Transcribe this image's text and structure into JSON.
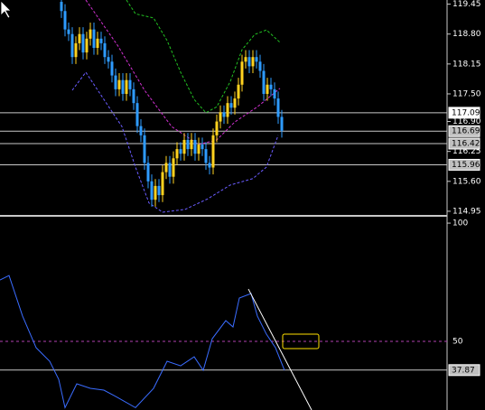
{
  "chart_data": [
    {
      "type": "candlestick",
      "x": [
        0,
        1,
        2,
        3,
        4,
        5,
        6,
        7,
        8,
        9,
        10,
        11,
        12,
        13,
        14,
        15,
        16,
        17,
        18,
        19,
        20,
        21,
        22,
        23,
        24,
        25,
        26,
        27,
        28,
        29,
        30,
        31,
        32,
        33,
        34,
        35,
        36,
        37,
        38,
        39,
        40,
        41,
        42,
        43,
        44,
        45,
        46,
        47,
        48,
        49,
        50,
        51,
        52,
        53,
        54,
        55,
        56,
        57,
        58,
        59,
        60,
        61
      ],
      "open": [
        119.5,
        119.3,
        118.9,
        118.8,
        118.3,
        118.6,
        118.8,
        118.4,
        118.7,
        118.9,
        118.5,
        118.7,
        118.6,
        118.3,
        118.2,
        117.9,
        117.6,
        117.8,
        117.5,
        117.8,
        117.6,
        117.3,
        116.8,
        116.6,
        116.0,
        115.6,
        115.2,
        115.5,
        115.3,
        115.8,
        116.0,
        115.7,
        116.1,
        116.3,
        116.2,
        116.5,
        116.3,
        116.5,
        116.2,
        116.4,
        116.3,
        116.0,
        115.9,
        116.6,
        116.9,
        117.1,
        117.0,
        117.3,
        117.2,
        117.4,
        117.7,
        118.2,
        118.3,
        118.1,
        118.3,
        118.2,
        118.0,
        117.5,
        117.7,
        117.6,
        117.4,
        117.0
      ],
      "high": [
        119.65,
        119.45,
        119.05,
        118.95,
        118.75,
        118.95,
        118.95,
        118.85,
        119.05,
        119.05,
        118.85,
        118.85,
        118.75,
        118.45,
        118.35,
        118.05,
        117.95,
        117.95,
        117.95,
        117.95,
        117.75,
        117.45,
        116.95,
        116.75,
        116.15,
        115.75,
        115.65,
        115.65,
        115.95,
        116.15,
        116.15,
        116.25,
        116.45,
        116.45,
        116.65,
        116.65,
        116.65,
        116.65,
        116.55,
        116.55,
        116.45,
        116.15,
        116.75,
        117.05,
        117.25,
        117.25,
        117.45,
        117.45,
        117.55,
        117.85,
        118.35,
        118.45,
        118.45,
        118.45,
        118.45,
        118.35,
        118.15,
        117.85,
        117.85,
        117.75,
        117.55,
        117.15
      ],
      "low": [
        119.15,
        118.75,
        118.65,
        118.15,
        118.15,
        118.45,
        118.25,
        118.25,
        118.55,
        118.35,
        118.35,
        118.45,
        118.15,
        118.05,
        117.75,
        117.45,
        117.45,
        117.35,
        117.35,
        117.45,
        117.15,
        116.65,
        116.45,
        115.85,
        115.45,
        115.05,
        115.05,
        115.15,
        115.15,
        115.65,
        115.55,
        115.55,
        115.95,
        116.05,
        116.05,
        116.15,
        116.15,
        116.05,
        116.05,
        116.15,
        115.85,
        115.75,
        115.75,
        116.45,
        116.75,
        116.85,
        116.85,
        117.05,
        117.05,
        117.25,
        117.55,
        118.05,
        117.95,
        117.95,
        118.05,
        117.85,
        117.35,
        117.35,
        117.45,
        117.25,
        116.85,
        116.55
      ],
      "close": [
        119.3,
        118.9,
        118.8,
        118.3,
        118.6,
        118.8,
        118.4,
        118.7,
        118.9,
        118.5,
        118.7,
        118.6,
        118.3,
        118.2,
        117.9,
        117.6,
        117.8,
        117.5,
        117.8,
        117.6,
        117.3,
        116.8,
        116.6,
        116.0,
        115.6,
        115.2,
        115.5,
        115.3,
        115.8,
        116.0,
        115.7,
        116.1,
        116.3,
        116.2,
        116.5,
        116.3,
        116.5,
        116.2,
        116.4,
        116.3,
        116.0,
        115.9,
        116.6,
        116.9,
        117.1,
        117.0,
        117.3,
        117.2,
        117.4,
        117.7,
        118.2,
        118.3,
        118.1,
        118.3,
        118.2,
        118.0,
        117.5,
        117.7,
        117.6,
        117.4,
        117.0,
        116.7
      ],
      "up_color": "#ffd21f",
      "down_color": "#2e9bff",
      "series": [
        {
          "color": "#22c022",
          "x": [
            18,
            20.5,
            25.5,
            29.25,
            33,
            36.75,
            40,
            43,
            46.75,
            50,
            53.5,
            56.75,
            60.5
          ],
          "values": [
            119.54,
            119.24,
            119.15,
            118.66,
            117.97,
            117.38,
            117.09,
            117.22,
            117.77,
            118.46,
            118.79,
            118.89,
            118.62
          ]
        },
        {
          "color": "#d030d0",
          "x": [
            6.75,
            15.5,
            23,
            30.5,
            38,
            43,
            48,
            54.25,
            60.5
          ],
          "values": [
            119.54,
            118.56,
            117.58,
            116.79,
            116.4,
            116.5,
            116.89,
            117.22,
            117.62
          ]
        },
        {
          "color": "#6a5cff",
          "x": [
            3,
            6.75,
            11.75,
            16.75,
            20.5,
            24.25,
            28,
            34.25,
            40.5,
            46.75,
            53,
            56.75,
            60
          ],
          "values": [
            117.58,
            117.97,
            117.38,
            116.79,
            115.91,
            115.13,
            114.93,
            114.99,
            115.22,
            115.52,
            115.66,
            115.91,
            116.6
          ]
        }
      ],
      "levels": [
        117.09,
        116.69,
        116.42,
        115.96
      ],
      "xlim": [
        -17,
        106.75
      ],
      "ylim": [
        114.87,
        119.54
      ],
      "yticks": [
        119.45,
        {
          "value": 118.8,
          "label": "118.80"
        },
        118.15,
        {
          "value": 117.5,
          "label": "117.50"
        },
        {
          "value": 116.9,
          "label": "116.90"
        },
        116.25,
        {
          "value": 115.6,
          "label": "115.60"
        },
        114.95
      ]
    },
    {
      "type": "line",
      "series": [
        {
          "color": "#3a6cff",
          "x": [
            -17,
            -14.5,
            -10.75,
            -7,
            -3.25,
            -0.75,
            1,
            4.25,
            8,
            11.75,
            15.5,
            20.5,
            25.5,
            29.25,
            33,
            36.75,
            39.25,
            41.75,
            45.5,
            47.5,
            49.25,
            52.5,
            54.25,
            56.75,
            59.25,
            61.75
          ],
          "values": [
            75.95,
            77.86,
            60.69,
            47.33,
            41.6,
            33.97,
            22,
            32.06,
            30.15,
            29.39,
            26.34,
            22,
            30.15,
            41.6,
            39.69,
            43.51,
            37.79,
            51.15,
            58.78,
            56.11,
            68.32,
            70.23,
            60.69,
            53.05,
            47.33,
            37.79
          ]
        }
      ],
      "trendline": {
        "x": [
          51.75,
          69.25
        ],
        "values": [
          72.14,
          21
        ]
      },
      "rectangle": {
        "x": [
          61.25,
          71.25
        ],
        "values": [
          53.05,
          46.95
        ],
        "color": "#ffe000"
      },
      "levels": [
        50,
        37.87
      ],
      "level_styles": [
        "dashed",
        "solid"
      ],
      "xlim": [
        -17,
        106.75
      ],
      "ylim": [
        21,
        102.7
      ],
      "yticks": [
        100
      ]
    }
  ]
}
